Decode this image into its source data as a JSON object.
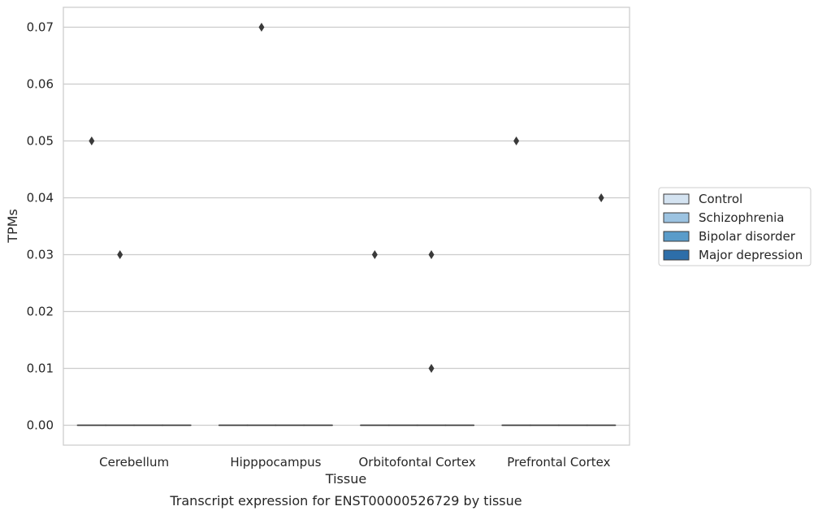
{
  "chart_data": {
    "type": "boxplot",
    "title": "",
    "caption": "Transcript expression for ENST00000526729 by tissue",
    "xlabel": "Tissue",
    "ylabel": "TPMs",
    "ylim": [
      -0.0035,
      0.0735
    ],
    "yticks": [
      0.0,
      0.01,
      0.02,
      0.03,
      0.04,
      0.05,
      0.06,
      0.07
    ],
    "ytick_labels": [
      "0.00",
      "0.01",
      "0.02",
      "0.03",
      "0.04",
      "0.05",
      "0.06",
      "0.07"
    ],
    "grid": "horizontal",
    "legend_position": "right",
    "categories": [
      "Cerebellum",
      "Hipppocampus",
      "Orbitofontal Cortex",
      "Prefrontal Cortex"
    ],
    "series": [
      {
        "name": "Control",
        "color": "#d4e3f1",
        "stats": [
          {
            "q1": 0,
            "median": 0,
            "q3": 0
          },
          {
            "q1": 0,
            "median": 0,
            "q3": 0
          },
          {
            "q1": 0,
            "median": 0,
            "q3": 0
          },
          {
            "q1": 0,
            "median": 0,
            "q3": 0
          }
        ],
        "outliers": [
          [
            0.05
          ],
          [],
          [
            0.03
          ],
          [
            0.05
          ]
        ]
      },
      {
        "name": "Schizophrenia",
        "color": "#9cc3e1",
        "stats": [
          {
            "q1": 0,
            "median": 0,
            "q3": 0
          },
          {
            "q1": 0,
            "median": 0,
            "q3": 0
          },
          {
            "q1": 0,
            "median": 0,
            "q3": 0
          },
          {
            "q1": 0,
            "median": 0,
            "q3": 0
          }
        ],
        "outliers": [
          [
            0.03
          ],
          [
            0.07
          ],
          [],
          []
        ]
      },
      {
        "name": "Bipolar disorder",
        "color": "#5a9cca",
        "stats": [
          {
            "q1": 0,
            "median": 0,
            "q3": 0
          },
          {
            "q1": 0,
            "median": 0,
            "q3": 0
          },
          {
            "q1": 0,
            "median": 0,
            "q3": 0
          },
          {
            "q1": 0,
            "median": 0,
            "q3": 0
          }
        ],
        "outliers": [
          [],
          [],
          [
            0.03,
            0.01
          ],
          []
        ]
      },
      {
        "name": "Major depression",
        "color": "#2d6ea9",
        "stats": [
          {
            "q1": 0,
            "median": 0,
            "q3": 0
          },
          {
            "q1": 0,
            "median": 0,
            "q3": 0
          },
          {
            "q1": 0,
            "median": 0,
            "q3": 0
          },
          {
            "q1": 0,
            "median": 0,
            "q3": 0
          }
        ],
        "outliers": [
          [],
          [],
          [],
          [
            0.04
          ]
        ]
      }
    ]
  }
}
